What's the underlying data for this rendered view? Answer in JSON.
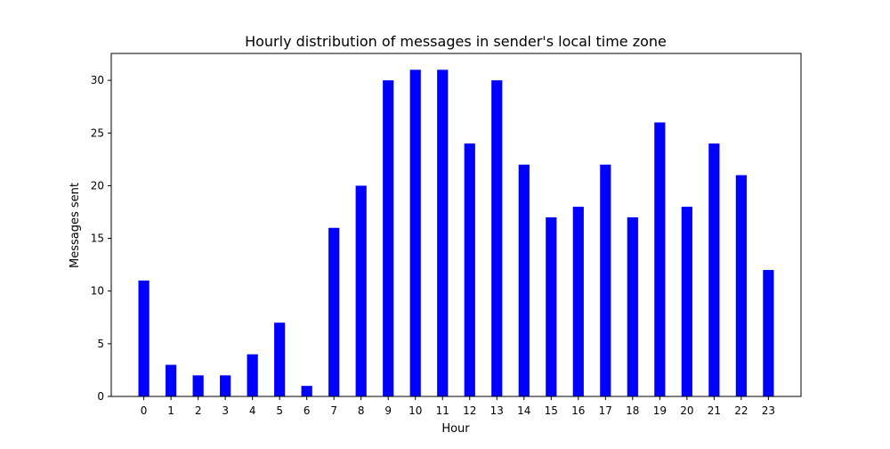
{
  "chart_data": {
    "type": "bar",
    "title": "Hourly distribution of messages in sender's local time zone",
    "xlabel": "Hour",
    "ylabel": "Messages sent",
    "categories": [
      "0",
      "1",
      "2",
      "3",
      "4",
      "5",
      "6",
      "7",
      "8",
      "9",
      "10",
      "11",
      "12",
      "13",
      "14",
      "15",
      "16",
      "17",
      "18",
      "19",
      "20",
      "21",
      "22",
      "23"
    ],
    "values": [
      11,
      3,
      2,
      2,
      4,
      7,
      1,
      16,
      20,
      30,
      31,
      31,
      24,
      30,
      22,
      17,
      18,
      22,
      17,
      26,
      18,
      24,
      21,
      12
    ],
    "xlim": [
      -1.2,
      24.2
    ],
    "ylim": [
      0,
      32.55
    ],
    "yticks": [
      0,
      5,
      10,
      15,
      20,
      25,
      30
    ],
    "bar_color": "#0000ff",
    "grid": false,
    "legend": "none"
  }
}
